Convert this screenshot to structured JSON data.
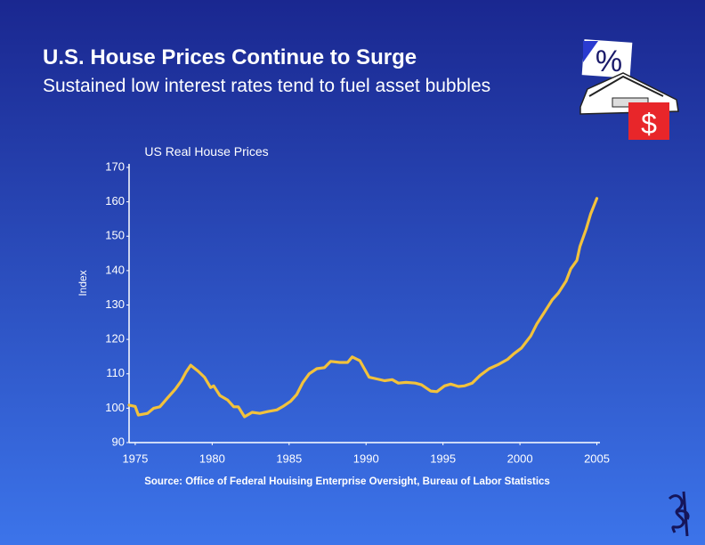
{
  "slide": {
    "title": "U.S. House Prices Continue to Surge",
    "subtitle": "Sustained low interest rates tend to fuel asset bubbles"
  },
  "icon": {
    "percent": "%",
    "dollar": "$"
  },
  "chart_data": {
    "type": "line",
    "title": "US Real House Prices",
    "ylabel": "Index",
    "source": "Source: Office of Federal Houising Enterprise Oversight, Bureau of Labor Statistics",
    "x": [
      1974.6,
      1975.0,
      1975.2,
      1975.8,
      1976.2,
      1976.6,
      1977.1,
      1977.6,
      1978.0,
      1978.3,
      1978.6,
      1979.1,
      1979.5,
      1979.9,
      1980.1,
      1980.5,
      1981.0,
      1981.4,
      1981.7,
      1982.1,
      1982.6,
      1983.1,
      1983.6,
      1984.2,
      1984.6,
      1985.1,
      1985.5,
      1985.9,
      1986.3,
      1986.8,
      1987.3,
      1987.7,
      1988.3,
      1988.8,
      1989.1,
      1989.6,
      1990.2,
      1990.7,
      1991.2,
      1991.7,
      1992.1,
      1992.6,
      1993.2,
      1993.6,
      1994.2,
      1994.6,
      1995.1,
      1995.5,
      1996.0,
      1996.4,
      1996.9,
      1997.4,
      1998.0,
      1998.6,
      1999.2,
      1999.6,
      2000.1,
      2000.7,
      2001.1,
      2001.6,
      2002.1,
      2002.5,
      2003.0,
      2003.3,
      2003.7,
      2003.9,
      2004.3,
      2004.6,
      2005.0
    ],
    "series": [
      {
        "name": "US Real House Prices",
        "color": "#f2c23c",
        "values": [
          100.9,
          100.5,
          98,
          98.5,
          100,
          100.4,
          103,
          105.5,
          108,
          110.5,
          112.5,
          110.7,
          109,
          106,
          106.5,
          103.7,
          102.4,
          100.4,
          100.4,
          97.5,
          98.8,
          98.5,
          99,
          99.5,
          100.5,
          102,
          104,
          107.5,
          110,
          111.5,
          111.8,
          113.6,
          113.3,
          113.3,
          114.9,
          113.8,
          109,
          108.5,
          108,
          108.3,
          107.3,
          107.5,
          107.3,
          106.8,
          105,
          104.8,
          106.5,
          107,
          106.3,
          106.5,
          107.3,
          109.5,
          111.5,
          112.7,
          114.2,
          115.8,
          117.5,
          121,
          124.5,
          128,
          131.5,
          133.5,
          137,
          140.5,
          143,
          147,
          152,
          156.5,
          161
        ]
      }
    ],
    "xlim": [
      1974.6,
      2005.2
    ],
    "xticks": [
      1975,
      1980,
      1985,
      1990,
      1995,
      2000,
      2005
    ],
    "ylim": [
      90,
      170
    ],
    "yticks": [
      90,
      100,
      110,
      120,
      130,
      140,
      150,
      160,
      170
    ],
    "grid": false
  }
}
